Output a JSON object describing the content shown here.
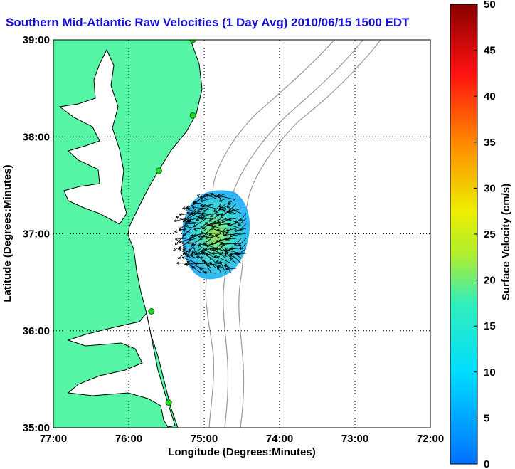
{
  "title": "Southern Mid-Atlantic Raw Velocities (1 Day Avg) 2010/06/15 1500 EDT",
  "x_axis": {
    "label": "Longitude (Degrees:Minutes)",
    "ticks": [
      "77:00",
      "76:00",
      "75:00",
      "74:00",
      "73:00",
      "72:00"
    ]
  },
  "y_axis": {
    "label": "Latitude (Degrees:Minutes)",
    "ticks": [
      "39:00",
      "38:00",
      "37:00",
      "36:00",
      "35:00"
    ]
  },
  "colorbar": {
    "label": "Surface Velocity (cm/s)",
    "ticks": [
      "0",
      "5",
      "10",
      "15",
      "20",
      "25",
      "30",
      "35",
      "40",
      "45",
      "50"
    ],
    "range": [
      0,
      50
    ]
  },
  "colors": {
    "land": "#55f5a5",
    "coast": "#000000",
    "bathymetry": "#9a9a9a",
    "title": "#1a0fd8",
    "station": "#22dd22"
  },
  "map_extent": {
    "lon": [
      -77,
      -72
    ],
    "lat": [
      35,
      39
    ]
  },
  "stations": [
    {
      "lon": -75.15,
      "lat": 39.0
    },
    {
      "lon": -75.15,
      "lat": 38.22
    },
    {
      "lon": -75.6,
      "lat": 37.65
    },
    {
      "lon": -75.7,
      "lat": 36.2
    },
    {
      "lon": -75.47,
      "lat": 35.26
    }
  ]
}
